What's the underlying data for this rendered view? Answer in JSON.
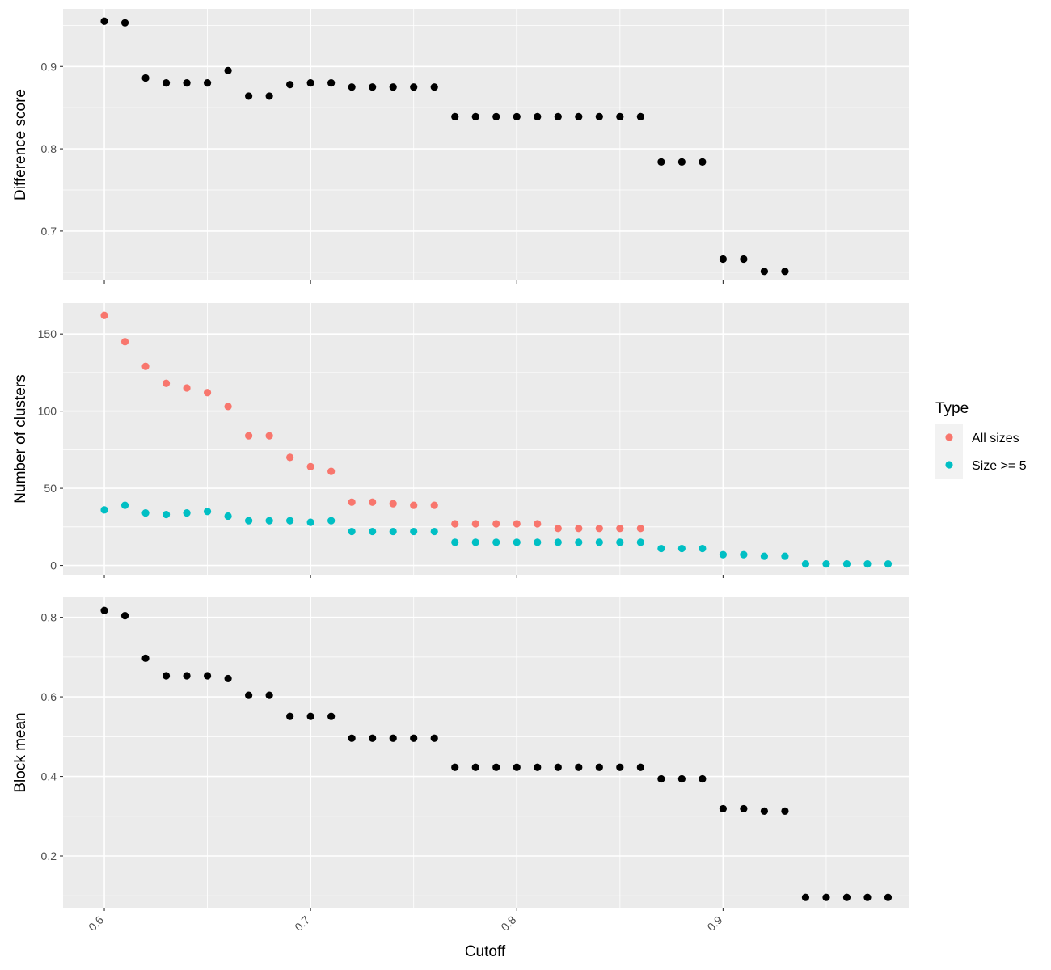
{
  "chart_data": [
    {
      "type": "scatter",
      "panel": "top",
      "ylabel": "Difference score",
      "ylim": [
        0.64,
        0.97
      ],
      "yticks": [
        0.7,
        0.8,
        0.9
      ],
      "xlim": [
        0.58,
        0.99
      ],
      "series": [
        {
          "color": "#000000",
          "x": [
            0.6,
            0.61,
            0.62,
            0.63,
            0.64,
            0.65,
            0.66,
            0.67,
            0.68,
            0.69,
            0.7,
            0.71,
            0.72,
            0.73,
            0.74,
            0.75,
            0.76,
            0.77,
            0.78,
            0.79,
            0.8,
            0.81,
            0.82,
            0.83,
            0.84,
            0.85,
            0.86,
            0.87,
            0.88,
            0.89,
            0.9,
            0.91,
            0.92,
            0.93
          ],
          "y": [
            0.955,
            0.953,
            0.886,
            0.88,
            0.88,
            0.88,
            0.895,
            0.864,
            0.864,
            0.878,
            0.88,
            0.88,
            0.875,
            0.875,
            0.875,
            0.875,
            0.875,
            0.839,
            0.839,
            0.839,
            0.839,
            0.839,
            0.839,
            0.839,
            0.839,
            0.839,
            0.839,
            0.784,
            0.784,
            0.784,
            0.666,
            0.666,
            0.651,
            0.651
          ]
        }
      ]
    },
    {
      "type": "scatter",
      "panel": "middle",
      "ylabel": "Number of clusters",
      "ylim": [
        -6,
        170
      ],
      "yticks": [
        0,
        50,
        100,
        150
      ],
      "xlim": [
        0.58,
        0.99
      ],
      "series": [
        {
          "name": "All sizes",
          "color": "#f8766d",
          "x": [
            0.6,
            0.61,
            0.62,
            0.63,
            0.64,
            0.65,
            0.66,
            0.67,
            0.68,
            0.69,
            0.7,
            0.71,
            0.72,
            0.73,
            0.74,
            0.75,
            0.76,
            0.77,
            0.78,
            0.79,
            0.8,
            0.81,
            0.82,
            0.83,
            0.84,
            0.85,
            0.86
          ],
          "y": [
            162,
            145,
            129,
            118,
            115,
            112,
            103,
            84,
            84,
            70,
            64,
            61,
            41,
            41,
            40,
            39,
            39,
            27,
            27,
            27,
            27,
            27,
            24,
            24,
            24,
            24,
            24
          ]
        },
        {
          "name": "Size >= 5",
          "color": "#00bfc4",
          "x": [
            0.6,
            0.61,
            0.62,
            0.63,
            0.64,
            0.65,
            0.66,
            0.67,
            0.68,
            0.69,
            0.7,
            0.71,
            0.72,
            0.73,
            0.74,
            0.75,
            0.76,
            0.77,
            0.78,
            0.79,
            0.8,
            0.81,
            0.82,
            0.83,
            0.84,
            0.85,
            0.86,
            0.87,
            0.88,
            0.89,
            0.9,
            0.91,
            0.92,
            0.93,
            0.94,
            0.95,
            0.96,
            0.97,
            0.98
          ],
          "y": [
            36,
            39,
            34,
            33,
            34,
            35,
            32,
            29,
            29,
            29,
            28,
            29,
            22,
            22,
            22,
            22,
            22,
            15,
            15,
            15,
            15,
            15,
            15,
            15,
            15,
            15,
            15,
            11,
            11,
            11,
            7,
            7,
            6,
            6,
            1,
            1,
            1,
            1,
            1
          ]
        }
      ]
    },
    {
      "type": "scatter",
      "panel": "bottom",
      "ylabel": "Block mean",
      "ylim": [
        0.07,
        0.85
      ],
      "yticks": [
        0.2,
        0.4,
        0.6,
        0.8
      ],
      "xlim": [
        0.58,
        0.99
      ],
      "xticks": [
        0.6,
        0.7,
        0.8,
        0.9
      ],
      "series": [
        {
          "color": "#000000",
          "x": [
            0.6,
            0.61,
            0.62,
            0.63,
            0.64,
            0.65,
            0.66,
            0.67,
            0.68,
            0.69,
            0.7,
            0.71,
            0.72,
            0.73,
            0.74,
            0.75,
            0.76,
            0.77,
            0.78,
            0.79,
            0.8,
            0.81,
            0.82,
            0.83,
            0.84,
            0.85,
            0.86,
            0.87,
            0.88,
            0.89,
            0.9,
            0.91,
            0.92,
            0.93,
            0.94,
            0.95,
            0.96,
            0.97,
            0.98
          ],
          "y": [
            0.817,
            0.804,
            0.697,
            0.653,
            0.653,
            0.653,
            0.646,
            0.604,
            0.604,
            0.551,
            0.551,
            0.551,
            0.496,
            0.496,
            0.496,
            0.496,
            0.496,
            0.423,
            0.423,
            0.423,
            0.423,
            0.423,
            0.423,
            0.423,
            0.423,
            0.423,
            0.423,
            0.394,
            0.394,
            0.394,
            0.319,
            0.319,
            0.313,
            0.313,
            0.096,
            0.096,
            0.096,
            0.096,
            0.096
          ]
        }
      ]
    }
  ],
  "xlabel": "Cutoff",
  "legend": {
    "title": "Type",
    "placement": "right",
    "items": [
      {
        "label": "All sizes",
        "color": "#f8766d"
      },
      {
        "label": "Size >= 5",
        "color": "#00bfc4"
      }
    ]
  },
  "colors": {
    "panel_background": "#ebebeb",
    "grid_major": "#ffffff"
  }
}
